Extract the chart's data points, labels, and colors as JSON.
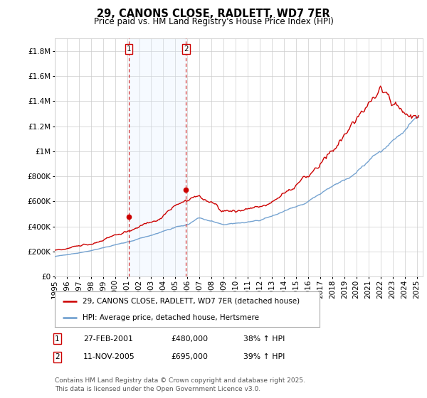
{
  "title": "29, CANONS CLOSE, RADLETT, WD7 7ER",
  "subtitle": "Price paid vs. HM Land Registry's House Price Index (HPI)",
  "ytick_values": [
    0,
    200000,
    400000,
    600000,
    800000,
    1000000,
    1200000,
    1400000,
    1600000,
    1800000
  ],
  "ylim": [
    0,
    1900000
  ],
  "xlim_start": 1995.0,
  "xlim_end": 2025.5,
  "sale1_x": 2001.15,
  "sale1_y": 480000,
  "sale1_label": "1",
  "sale1_date": "27-FEB-2001",
  "sale1_price": "£480,000",
  "sale1_hpi": "38% ↑ HPI",
  "sale2_x": 2005.87,
  "sale2_y": 695000,
  "sale2_label": "2",
  "sale2_date": "11-NOV-2005",
  "sale2_price": "£695,000",
  "sale2_hpi": "39% ↑ HPI",
  "line_color_price": "#cc0000",
  "line_color_hpi": "#6699cc",
  "vline_color": "#cc0000",
  "shade_color": "#ddeeff",
  "legend_label1": "29, CANONS CLOSE, RADLETT, WD7 7ER (detached house)",
  "legend_label2": "HPI: Average price, detached house, Hertsmere",
  "footer": "Contains HM Land Registry data © Crown copyright and database right 2025.\nThis data is licensed under the Open Government Licence v3.0.",
  "background_color": "#ffffff",
  "grid_color": "#cccccc",
  "title_fontsize": 10.5,
  "subtitle_fontsize": 8.5,
  "tick_fontsize": 7.5,
  "legend_fontsize": 7.5,
  "footer_fontsize": 6.5
}
